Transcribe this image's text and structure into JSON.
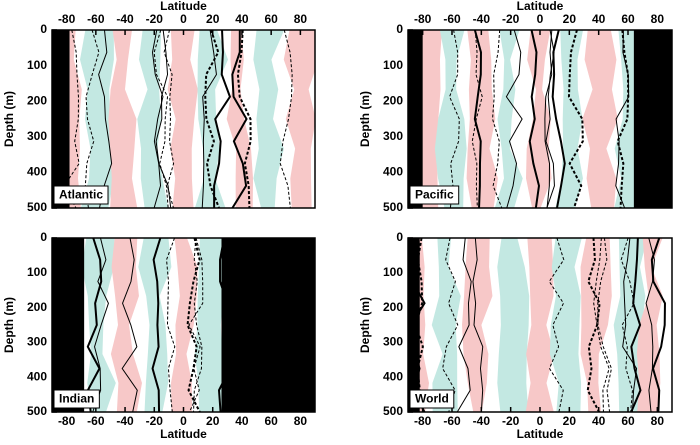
{
  "chart_data": [
    {
      "type": "contour",
      "title": "Atlantic",
      "xlabel": "Latitude",
      "ylabel": "Depth (m)",
      "xaxis": "top",
      "xlim": [
        -90,
        90
      ],
      "ylim": [
        500,
        0
      ],
      "xticks": [
        -80,
        -60,
        -40,
        -20,
        0,
        20,
        40,
        60,
        80
      ],
      "yticks": [
        0,
        100,
        200,
        300,
        400,
        500
      ],
      "land": [
        [
          -90,
          -78
        ]
      ],
      "land_color": "#000000",
      "fill_colors": [
        "#f7c8c8",
        "#c3e8e2"
      ]
    },
    {
      "type": "contour",
      "title": "Pacific",
      "xlabel": "Latitude",
      "ylabel": "Depth (m)",
      "xaxis": "top",
      "xlim": [
        -90,
        90
      ],
      "ylim": [
        500,
        0
      ],
      "xticks": [
        -80,
        -60,
        -40,
        -20,
        0,
        20,
        40,
        60,
        80
      ],
      "yticks": [
        0,
        100,
        200,
        300,
        400,
        500
      ],
      "land": [
        [
          -90,
          -80
        ],
        [
          64,
          90
        ]
      ],
      "land_color": "#000000",
      "fill_colors": [
        "#f7c8c8",
        "#c3e8e2"
      ]
    },
    {
      "type": "contour",
      "title": "Indian",
      "xlabel": "Latitude",
      "ylabel": "Depth (m)",
      "xaxis": "bottom",
      "xlim": [
        -90,
        90
      ],
      "ylim": [
        500,
        0
      ],
      "xticks": [
        -80,
        -60,
        -40,
        -20,
        0,
        20,
        40,
        60,
        80
      ],
      "yticks": [
        0,
        100,
        200,
        300,
        400,
        500
      ],
      "land": [
        [
          -90,
          -68
        ],
        [
          26,
          90
        ]
      ],
      "land_color": "#000000",
      "fill_colors": [
        "#f7c8c8",
        "#c3e8e2"
      ]
    },
    {
      "type": "contour",
      "title": "World",
      "xlabel": "Latitude",
      "ylabel": "Depth (m)",
      "xaxis": "bottom",
      "xlim": [
        -90,
        90
      ],
      "ylim": [
        500,
        0
      ],
      "xticks": [
        -80,
        -60,
        -40,
        -20,
        0,
        20,
        40,
        60,
        80
      ],
      "yticks": [
        0,
        100,
        200,
        300,
        400,
        500
      ],
      "land": [
        [
          -90,
          -82
        ]
      ],
      "land_color": "#000000",
      "fill_colors": [
        "#f7c8c8",
        "#c3e8e2"
      ]
    }
  ]
}
